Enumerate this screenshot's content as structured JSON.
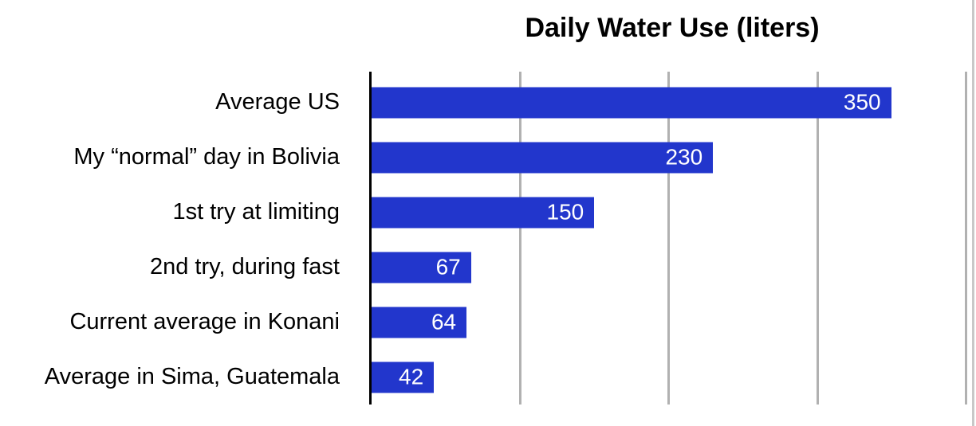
{
  "page": {
    "background": "#ffffff",
    "right_border_color": "#c8c8c8"
  },
  "chart_data": {
    "type": "bar",
    "orientation": "horizontal",
    "title": "Daily Water Use (liters)",
    "categories": [
      "Average US",
      "My “normal” day in Bolivia",
      "1st try at limiting",
      "2nd try, during fast",
      "Current average in Konani",
      "Average in Sima, Guatemala"
    ],
    "values": [
      350,
      230,
      150,
      67,
      64,
      42
    ],
    "value_labels": [
      "350",
      "230",
      "150",
      "67",
      "64",
      "42"
    ],
    "xlabel": "",
    "ylabel": "",
    "xlim": [
      0,
      405
    ],
    "gridlines": [
      100,
      200,
      300,
      400
    ],
    "grid_visible": true,
    "legend": "none",
    "colors": {
      "bar": "#2236cc",
      "value_text": "#ffffff",
      "gridline": "#b1b1b1",
      "axis": "#000000",
      "label_text": "#000000",
      "title_text": "#000000"
    }
  }
}
